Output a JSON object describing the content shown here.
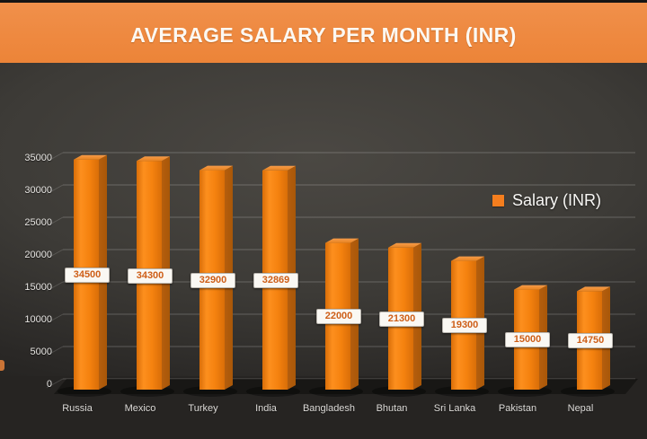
{
  "title": "AVERAGE SALARY PER MONTH (INR)",
  "legend": {
    "label": "Salary (INR)"
  },
  "colors": {
    "accent_orange": "#F57E1E",
    "header_bg": "#EE8940",
    "header_text": "#FCF8F2",
    "bar_front_light": "#FD8F1E",
    "bar_front_mid": "#F5820F",
    "bar_front_dark": "#D96E08",
    "bar_side_dark": "#A85708",
    "bar_side": "#B55E0E",
    "bar_top_light": "#F59B4A",
    "bar_top": "#E8831F",
    "value_label_text": "#CE5E17",
    "value_label_bg": "#FAF8F3",
    "axis_text": "#E6E4E1",
    "background_center": "#4B4843",
    "background_edge": "#1F1E1C",
    "gridline": "rgba(255,255,255,0.22)"
  },
  "chart_data": {
    "type": "bar",
    "style": "3d-bar",
    "title": "AVERAGE SALARY PER MONTH (INR)",
    "categories": [
      "Russia",
      "Mexico",
      "Turkey",
      "India",
      "Bangladesh",
      "Bhutan",
      "Sri Lanka",
      "Pakistan",
      "Nepal"
    ],
    "series": [
      {
        "name": "Salary (INR)",
        "values": [
          34500,
          34300,
          32900,
          32869,
          22000,
          21300,
          19300,
          15000,
          14750
        ]
      }
    ],
    "data_labels": [
      "34500",
      "34300",
      "32900",
      "32869",
      "22000",
      "21300",
      "19300",
      "15000",
      "14750"
    ],
    "xlabel": "",
    "ylabel": "",
    "ylim": [
      0,
      35000
    ],
    "yticks": [
      0,
      5000,
      10000,
      15000,
      20000,
      25000,
      30000,
      35000
    ],
    "grid": true,
    "legend_position": "right-center"
  }
}
